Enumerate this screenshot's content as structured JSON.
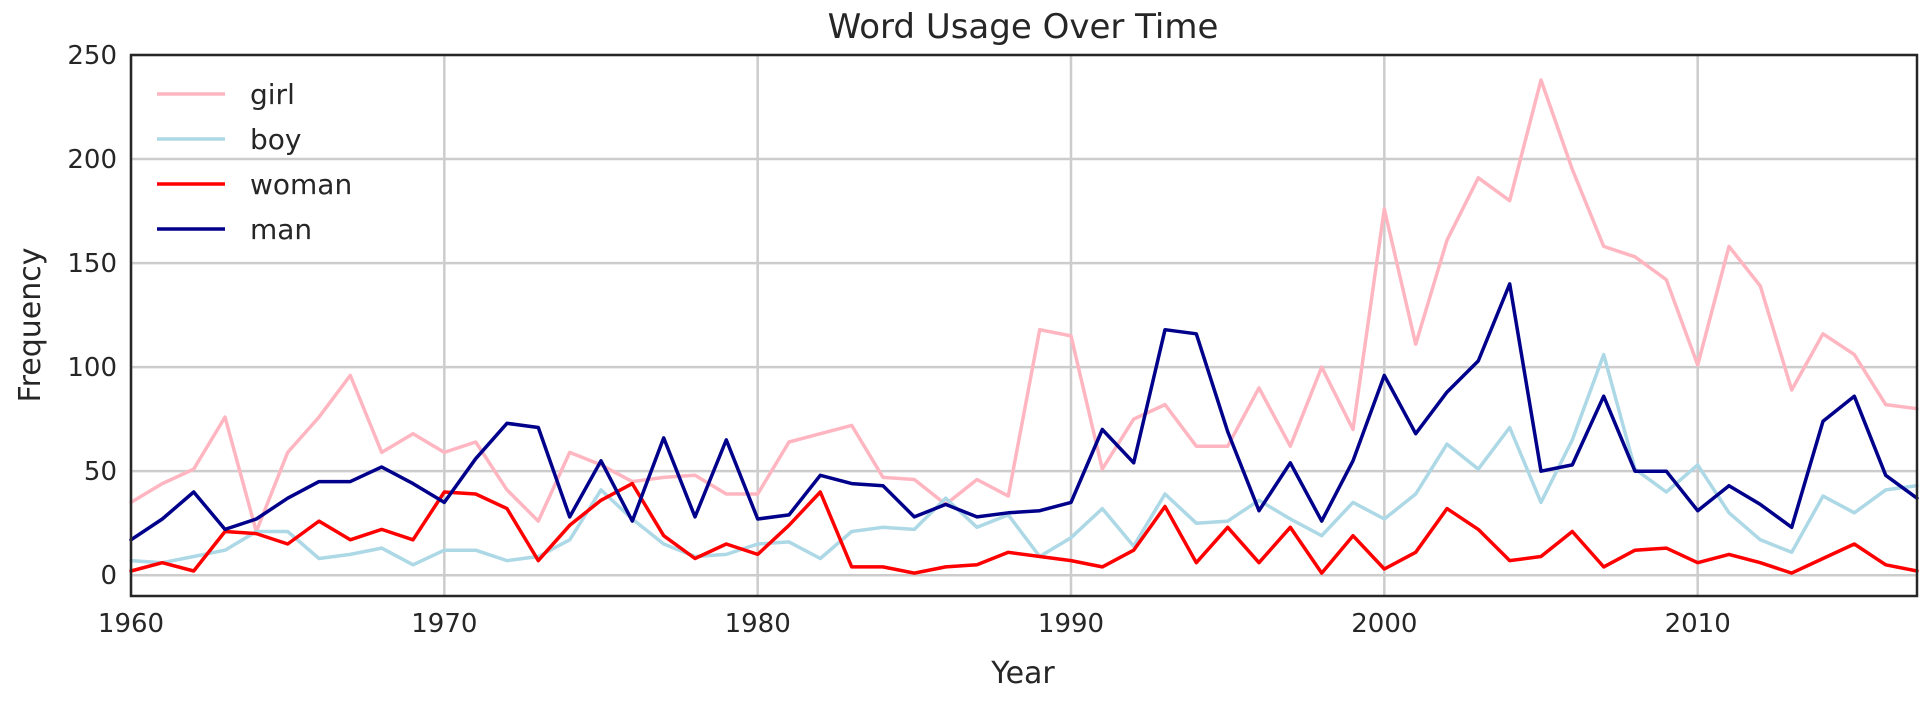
{
  "chart_data": {
    "type": "line",
    "title": "Word Usage Over Time",
    "xlabel": "Year",
    "ylabel": "Frequency",
    "xlim": [
      1960,
      2017
    ],
    "ylim": [
      -10,
      250
    ],
    "x_ticks": [
      1960,
      1970,
      1980,
      1990,
      2000,
      2010
    ],
    "y_ticks": [
      0,
      50,
      100,
      150,
      200,
      250
    ],
    "grid": true,
    "legend_position": "top-left",
    "x": [
      1960,
      1961,
      1962,
      1963,
      1964,
      1965,
      1966,
      1967,
      1968,
      1969,
      1970,
      1971,
      1972,
      1973,
      1974,
      1975,
      1976,
      1977,
      1978,
      1979,
      1980,
      1981,
      1982,
      1983,
      1984,
      1985,
      1986,
      1987,
      1988,
      1989,
      1990,
      1991,
      1992,
      1993,
      1994,
      1995,
      1996,
      1997,
      1998,
      1999,
      2000,
      2001,
      2002,
      2003,
      2004,
      2005,
      2006,
      2007,
      2008,
      2009,
      2010,
      2011,
      2012,
      2013,
      2014,
      2015,
      2016,
      2017
    ],
    "series": [
      {
        "name": "girl",
        "color": "#ffb6c1",
        "values": [
          35,
          44,
          51,
          76,
          21,
          59,
          76,
          96,
          59,
          68,
          59,
          64,
          41,
          26,
          59,
          53,
          45,
          47,
          48,
          39,
          39,
          64,
          68,
          72,
          47,
          46,
          34,
          46,
          38,
          118,
          115,
          51,
          75,
          82,
          62,
          62,
          90,
          62,
          100,
          70,
          176,
          111,
          161,
          191,
          180,
          238,
          195,
          158,
          153,
          142,
          101,
          158,
          139,
          89,
          116,
          106,
          82,
          80
        ]
      },
      {
        "name": "boy",
        "color": "#add8e6",
        "values": [
          7,
          6,
          9,
          12,
          21,
          21,
          8,
          10,
          13,
          5,
          12,
          12,
          7,
          9,
          17,
          41,
          27,
          15,
          9,
          10,
          15,
          16,
          8,
          21,
          23,
          22,
          37,
          23,
          29,
          9,
          18,
          32,
          14,
          39,
          25,
          26,
          36,
          27,
          19,
          35,
          27,
          39,
          63,
          51,
          71,
          35,
          65,
          106,
          51,
          40,
          53,
          30,
          17,
          11,
          38,
          30,
          41,
          43
        ]
      },
      {
        "name": "woman",
        "color": "#ff0000",
        "values": [
          2,
          6,
          2,
          21,
          20,
          15,
          26,
          17,
          22,
          17,
          40,
          39,
          32,
          7,
          24,
          36,
          44,
          19,
          8,
          15,
          10,
          24,
          40,
          4,
          4,
          1,
          4,
          5,
          11,
          9,
          7,
          4,
          12,
          33,
          6,
          23,
          6,
          23,
          1,
          19,
          3,
          11,
          32,
          22,
          7,
          9,
          21,
          4,
          12,
          13,
          6,
          10,
          6,
          1,
          8,
          15,
          5,
          2
        ]
      },
      {
        "name": "man",
        "color": "#00008b",
        "values": [
          17,
          27,
          40,
          22,
          27,
          37,
          45,
          45,
          52,
          44,
          35,
          56,
          73,
          71,
          28,
          55,
          26,
          66,
          28,
          65,
          27,
          29,
          48,
          44,
          43,
          28,
          34,
          28,
          30,
          31,
          35,
          70,
          54,
          118,
          116,
          69,
          31,
          54,
          26,
          55,
          96,
          68,
          88,
          103,
          140,
          50,
          53,
          86,
          50,
          50,
          31,
          43,
          34,
          23,
          74,
          86,
          48,
          37
        ]
      }
    ]
  }
}
